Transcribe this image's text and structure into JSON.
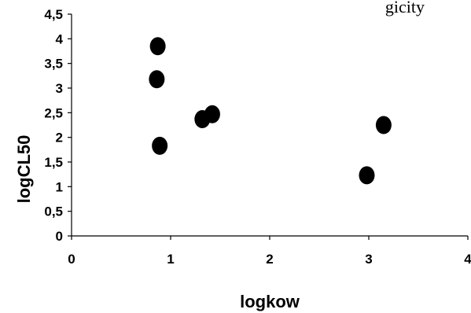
{
  "chart_data": {
    "type": "scatter",
    "title_fragment": "gicity",
    "xlabel": "logkow",
    "ylabel": "logCL50",
    "xlim": [
      0,
      4
    ],
    "ylim": [
      0,
      4.5
    ],
    "x_ticks": [
      "0",
      "1",
      "2",
      "3",
      "4"
    ],
    "y_ticks": [
      "0",
      "0,5",
      "1",
      "1,5",
      "2",
      "2,5",
      "3",
      "3,5",
      "4",
      "4,5"
    ],
    "grid": false,
    "legend": "none",
    "marker_color": "#000000",
    "points": [
      {
        "x": 0.87,
        "y": 3.85
      },
      {
        "x": 0.86,
        "y": 3.18
      },
      {
        "x": 0.89,
        "y": 1.83
      },
      {
        "x": 1.32,
        "y": 2.37
      },
      {
        "x": 1.42,
        "y": 2.47
      },
      {
        "x": 2.98,
        "y": 1.23
      },
      {
        "x": 3.15,
        "y": 2.25
      }
    ]
  }
}
